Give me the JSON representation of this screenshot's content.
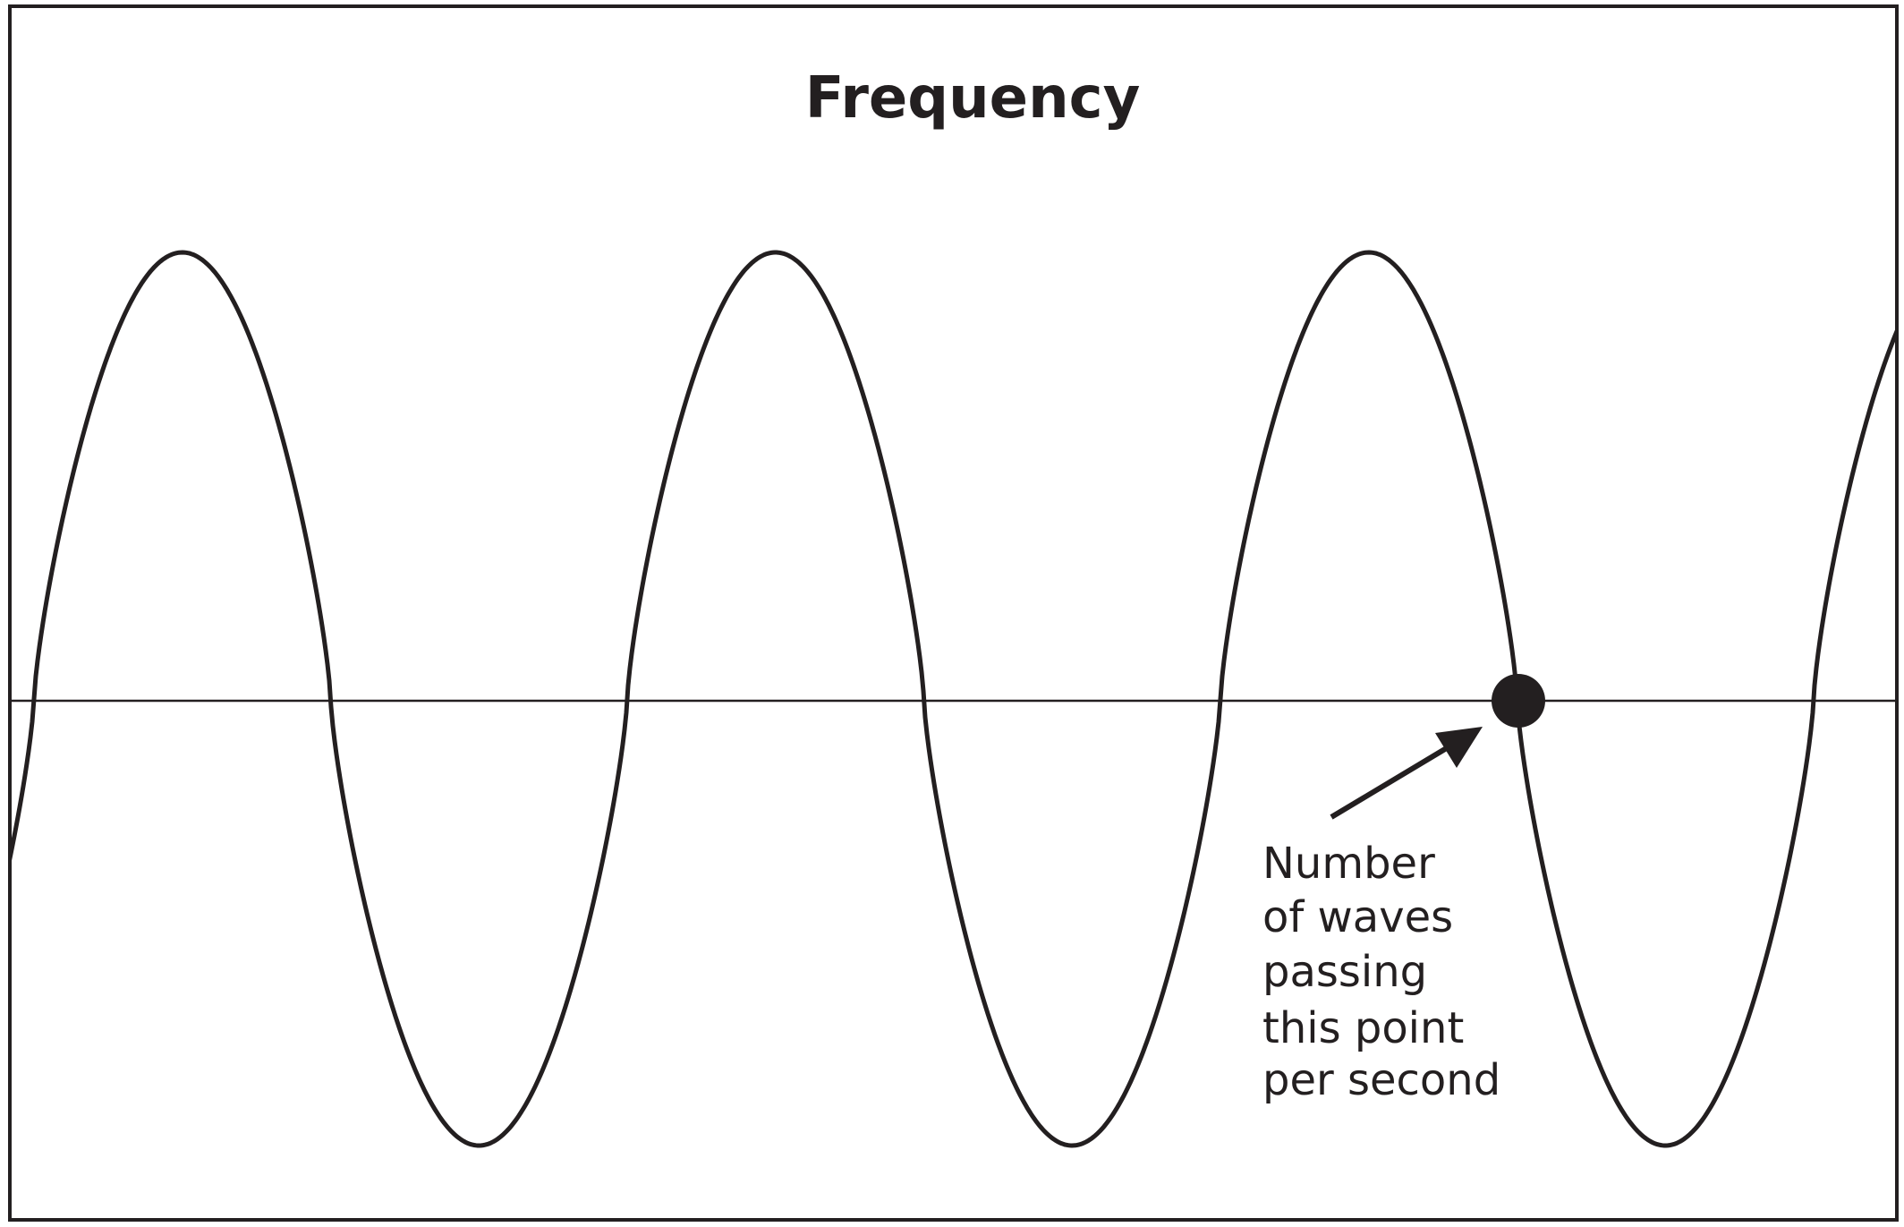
{
  "title": "Frequency",
  "annotation": {
    "lines": [
      "Number",
      "of waves",
      "passing",
      "this point",
      "per second"
    ]
  }
}
